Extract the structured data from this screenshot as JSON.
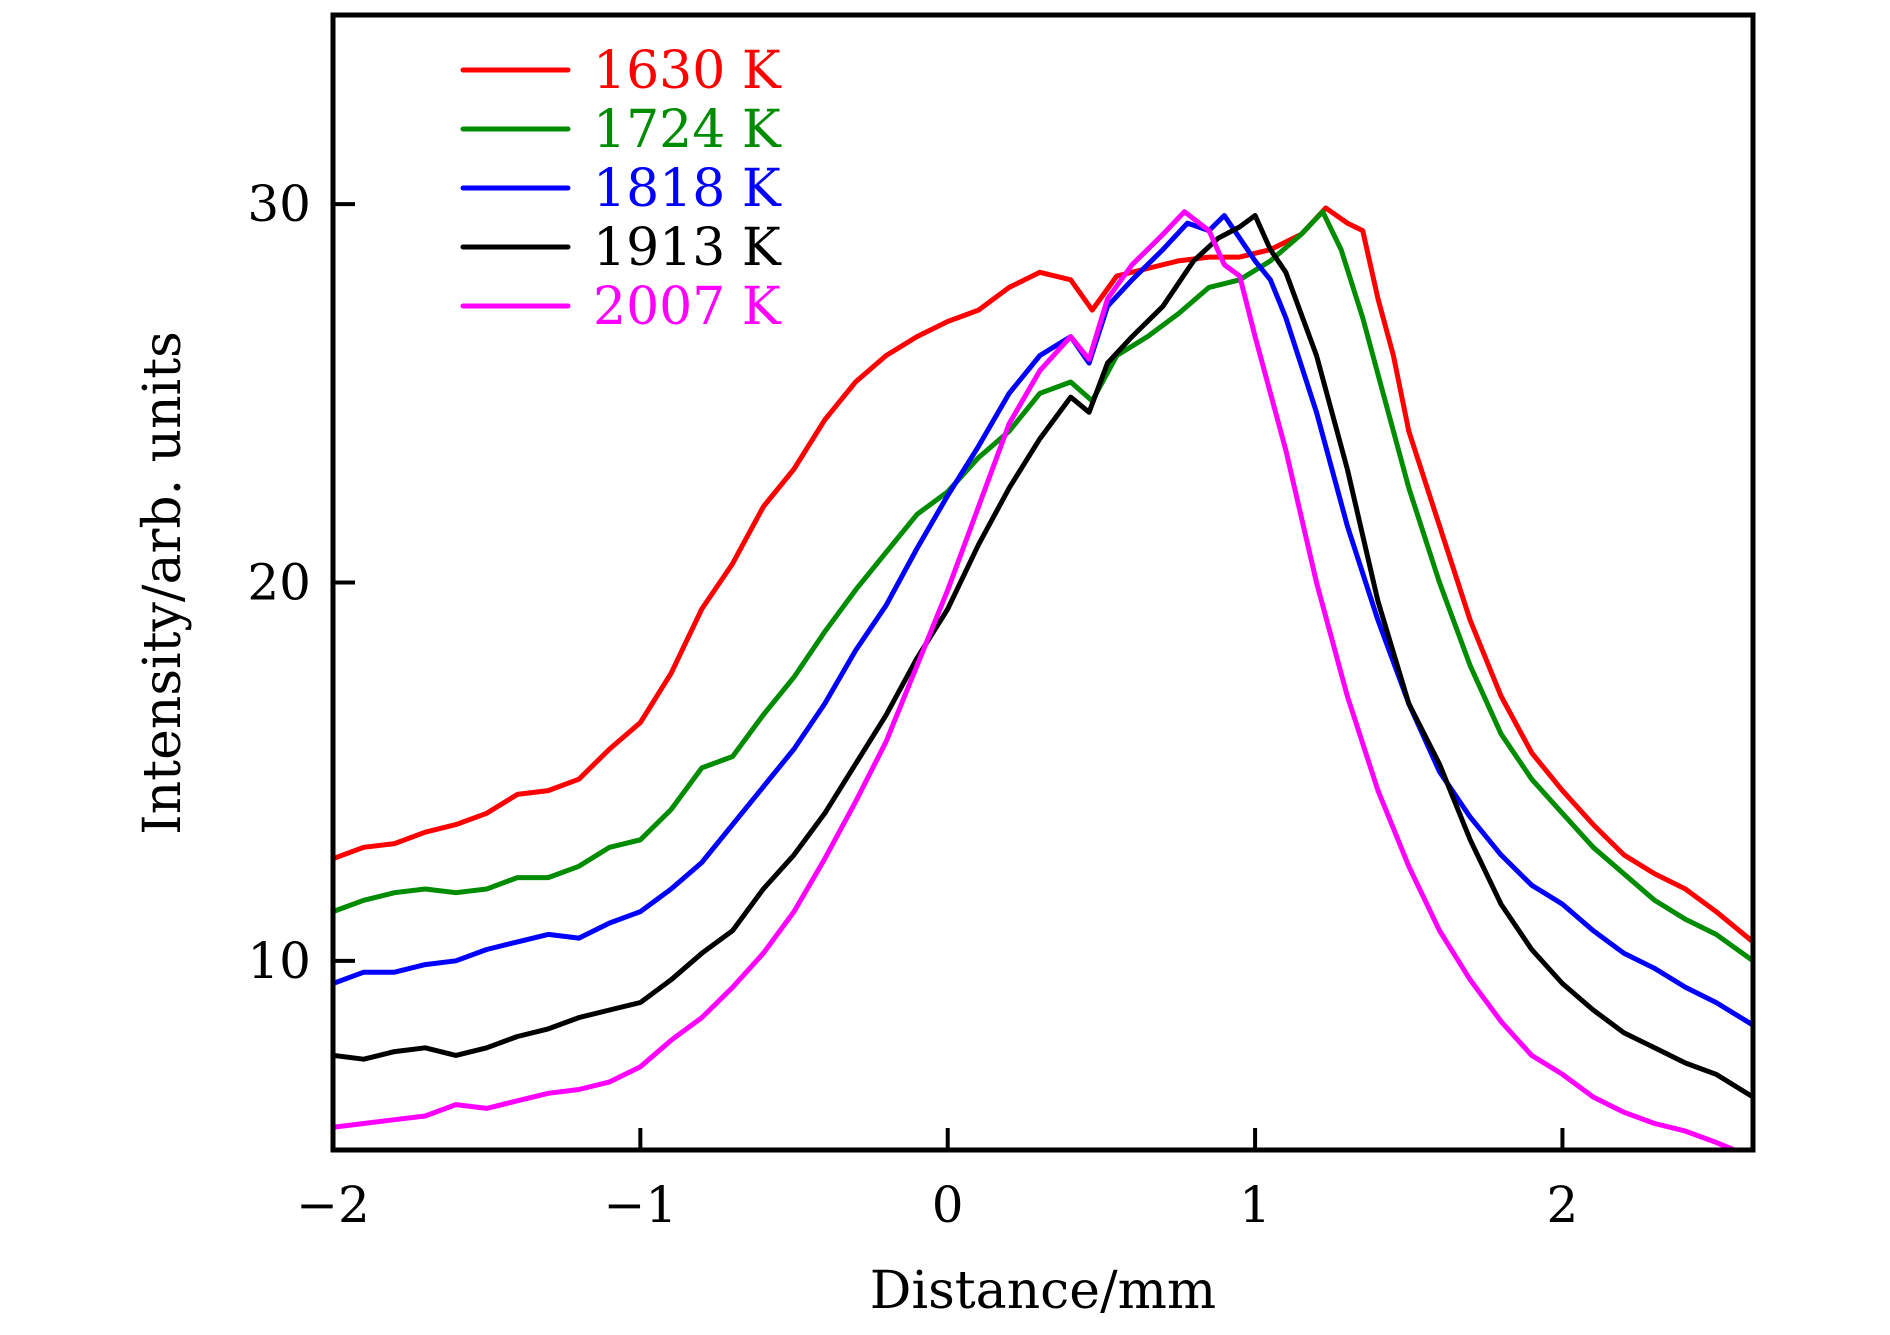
{
  "chart_data": {
    "type": "line",
    "title": "",
    "xlabel": "Distance/mm",
    "ylabel": "Intensity/arb. units",
    "xlim": [
      -2,
      2.62
    ],
    "ylim": [
      5,
      35
    ],
    "xticks": [
      -2,
      -1,
      0,
      1,
      2
    ],
    "xtick_labels": [
      "−2",
      "−1",
      "0",
      "1",
      "2"
    ],
    "yticks": [
      10,
      20,
      30
    ],
    "ytick_labels": [
      "10",
      "20",
      "30"
    ],
    "grid": false,
    "legend_position": "top-left",
    "series": [
      {
        "name": "1630 K",
        "color": "#ff0000",
        "x": [
          -2.0,
          -1.9,
          -1.8,
          -1.7,
          -1.6,
          -1.5,
          -1.4,
          -1.3,
          -1.2,
          -1.1,
          -1.0,
          -0.9,
          -0.8,
          -0.7,
          -0.6,
          -0.5,
          -0.4,
          -0.3,
          -0.2,
          -0.1,
          0.0,
          0.1,
          0.2,
          0.3,
          0.4,
          0.47,
          0.55,
          0.65,
          0.75,
          0.85,
          0.95,
          1.05,
          1.15,
          1.23,
          1.3,
          1.35,
          1.4,
          1.45,
          1.5,
          1.6,
          1.7,
          1.8,
          1.9,
          2.0,
          2.1,
          2.2,
          2.3,
          2.4,
          2.5,
          2.62
        ],
        "y": [
          12.7,
          13.0,
          13.1,
          13.4,
          13.6,
          13.9,
          14.4,
          14.5,
          14.8,
          15.6,
          16.3,
          17.6,
          19.3,
          20.5,
          22.0,
          23.0,
          24.3,
          25.3,
          26.0,
          26.5,
          26.9,
          27.2,
          27.8,
          28.2,
          28.0,
          27.2,
          28.1,
          28.3,
          28.5,
          28.6,
          28.6,
          28.8,
          29.2,
          29.9,
          29.5,
          29.3,
          27.5,
          26.0,
          24.0,
          21.5,
          19.0,
          17.0,
          15.5,
          14.5,
          13.6,
          12.8,
          12.3,
          11.9,
          11.3,
          10.5
        ]
      },
      {
        "name": "1724 K",
        "color": "#008c00",
        "x": [
          -2.0,
          -1.9,
          -1.8,
          -1.7,
          -1.6,
          -1.5,
          -1.4,
          -1.3,
          -1.2,
          -1.1,
          -1.0,
          -0.9,
          -0.8,
          -0.7,
          -0.6,
          -0.5,
          -0.4,
          -0.3,
          -0.2,
          -0.1,
          0.0,
          0.1,
          0.2,
          0.3,
          0.4,
          0.47,
          0.55,
          0.65,
          0.75,
          0.85,
          0.95,
          1.05,
          1.15,
          1.22,
          1.28,
          1.35,
          1.4,
          1.5,
          1.6,
          1.7,
          1.8,
          1.9,
          2.0,
          2.1,
          2.2,
          2.3,
          2.4,
          2.5,
          2.62
        ],
        "y": [
          11.3,
          11.6,
          11.8,
          11.9,
          11.8,
          11.9,
          12.2,
          12.2,
          12.5,
          13.0,
          13.2,
          14.0,
          15.1,
          15.4,
          16.5,
          17.5,
          18.7,
          19.8,
          20.8,
          21.8,
          22.4,
          23.3,
          24.0,
          25.0,
          25.3,
          24.8,
          26.0,
          26.5,
          27.1,
          27.8,
          28.0,
          28.5,
          29.2,
          29.8,
          28.8,
          27.0,
          25.5,
          22.5,
          20.0,
          17.8,
          16.0,
          14.8,
          13.9,
          13.0,
          12.3,
          11.6,
          11.1,
          10.7,
          10.0
        ]
      },
      {
        "name": "1818 K",
        "color": "#0000ff",
        "x": [
          -2.0,
          -1.9,
          -1.8,
          -1.7,
          -1.6,
          -1.5,
          -1.4,
          -1.3,
          -1.2,
          -1.1,
          -1.0,
          -0.9,
          -0.8,
          -0.7,
          -0.6,
          -0.5,
          -0.4,
          -0.3,
          -0.2,
          -0.1,
          0.0,
          0.1,
          0.2,
          0.3,
          0.4,
          0.46,
          0.52,
          0.6,
          0.7,
          0.78,
          0.85,
          0.9,
          0.95,
          1.0,
          1.05,
          1.1,
          1.2,
          1.3,
          1.4,
          1.5,
          1.6,
          1.7,
          1.8,
          1.9,
          2.0,
          2.1,
          2.2,
          2.3,
          2.4,
          2.5,
          2.62
        ],
        "y": [
          9.4,
          9.7,
          9.7,
          9.9,
          10.0,
          10.3,
          10.5,
          10.7,
          10.6,
          11.0,
          11.3,
          11.9,
          12.6,
          13.6,
          14.6,
          15.6,
          16.8,
          18.2,
          19.4,
          20.9,
          22.3,
          23.6,
          25.0,
          26.0,
          26.5,
          25.8,
          27.3,
          28.0,
          28.8,
          29.5,
          29.3,
          29.7,
          29.1,
          28.5,
          28.0,
          27.0,
          24.5,
          21.5,
          19.0,
          16.8,
          15.0,
          13.8,
          12.8,
          12.0,
          11.5,
          10.8,
          10.2,
          9.8,
          9.3,
          8.9,
          8.3
        ]
      },
      {
        "name": "1913 K",
        "color": "#000000",
        "x": [
          -2.0,
          -1.9,
          -1.8,
          -1.7,
          -1.6,
          -1.5,
          -1.4,
          -1.3,
          -1.2,
          -1.1,
          -1.0,
          -0.9,
          -0.8,
          -0.7,
          -0.6,
          -0.5,
          -0.4,
          -0.3,
          -0.2,
          -0.1,
          0.0,
          0.1,
          0.2,
          0.3,
          0.4,
          0.46,
          0.52,
          0.6,
          0.7,
          0.8,
          0.88,
          0.95,
          1.0,
          1.05,
          1.1,
          1.2,
          1.3,
          1.4,
          1.5,
          1.6,
          1.7,
          1.8,
          1.9,
          2.0,
          2.1,
          2.2,
          2.3,
          2.4,
          2.5,
          2.62
        ],
        "y": [
          7.5,
          7.4,
          7.6,
          7.7,
          7.5,
          7.7,
          8.0,
          8.2,
          8.5,
          8.7,
          8.9,
          9.5,
          10.2,
          10.8,
          11.9,
          12.8,
          13.9,
          15.2,
          16.5,
          18.0,
          19.3,
          21.0,
          22.5,
          23.8,
          24.9,
          24.5,
          25.8,
          26.5,
          27.3,
          28.5,
          29.1,
          29.4,
          29.7,
          28.8,
          28.2,
          26.0,
          23.0,
          19.5,
          16.8,
          15.2,
          13.2,
          11.5,
          10.3,
          9.4,
          8.7,
          8.1,
          7.7,
          7.3,
          7.0,
          6.4
        ]
      },
      {
        "name": "2007 K",
        "color": "#ff00ff",
        "x": [
          -2.0,
          -1.9,
          -1.8,
          -1.7,
          -1.6,
          -1.5,
          -1.4,
          -1.3,
          -1.2,
          -1.1,
          -1.0,
          -0.9,
          -0.8,
          -0.7,
          -0.6,
          -0.5,
          -0.4,
          -0.3,
          -0.2,
          -0.1,
          0.0,
          0.1,
          0.2,
          0.3,
          0.4,
          0.46,
          0.52,
          0.6,
          0.7,
          0.77,
          0.85,
          0.9,
          0.95,
          1.0,
          1.1,
          1.2,
          1.3,
          1.4,
          1.5,
          1.6,
          1.7,
          1.8,
          1.9,
          2.0,
          2.1,
          2.2,
          2.3,
          2.4,
          2.5,
          2.62
        ],
        "y": [
          5.6,
          5.7,
          5.8,
          5.9,
          6.2,
          6.1,
          6.3,
          6.5,
          6.6,
          6.8,
          7.2,
          7.9,
          8.5,
          9.3,
          10.2,
          11.3,
          12.7,
          14.2,
          15.8,
          17.8,
          19.8,
          22.0,
          24.2,
          25.6,
          26.5,
          25.9,
          27.5,
          28.4,
          29.2,
          29.8,
          29.3,
          28.4,
          28.1,
          26.5,
          23.5,
          20.0,
          17.0,
          14.5,
          12.5,
          10.8,
          9.5,
          8.4,
          7.5,
          7.0,
          6.4,
          6.0,
          5.7,
          5.5,
          5.2,
          4.8
        ]
      }
    ]
  }
}
